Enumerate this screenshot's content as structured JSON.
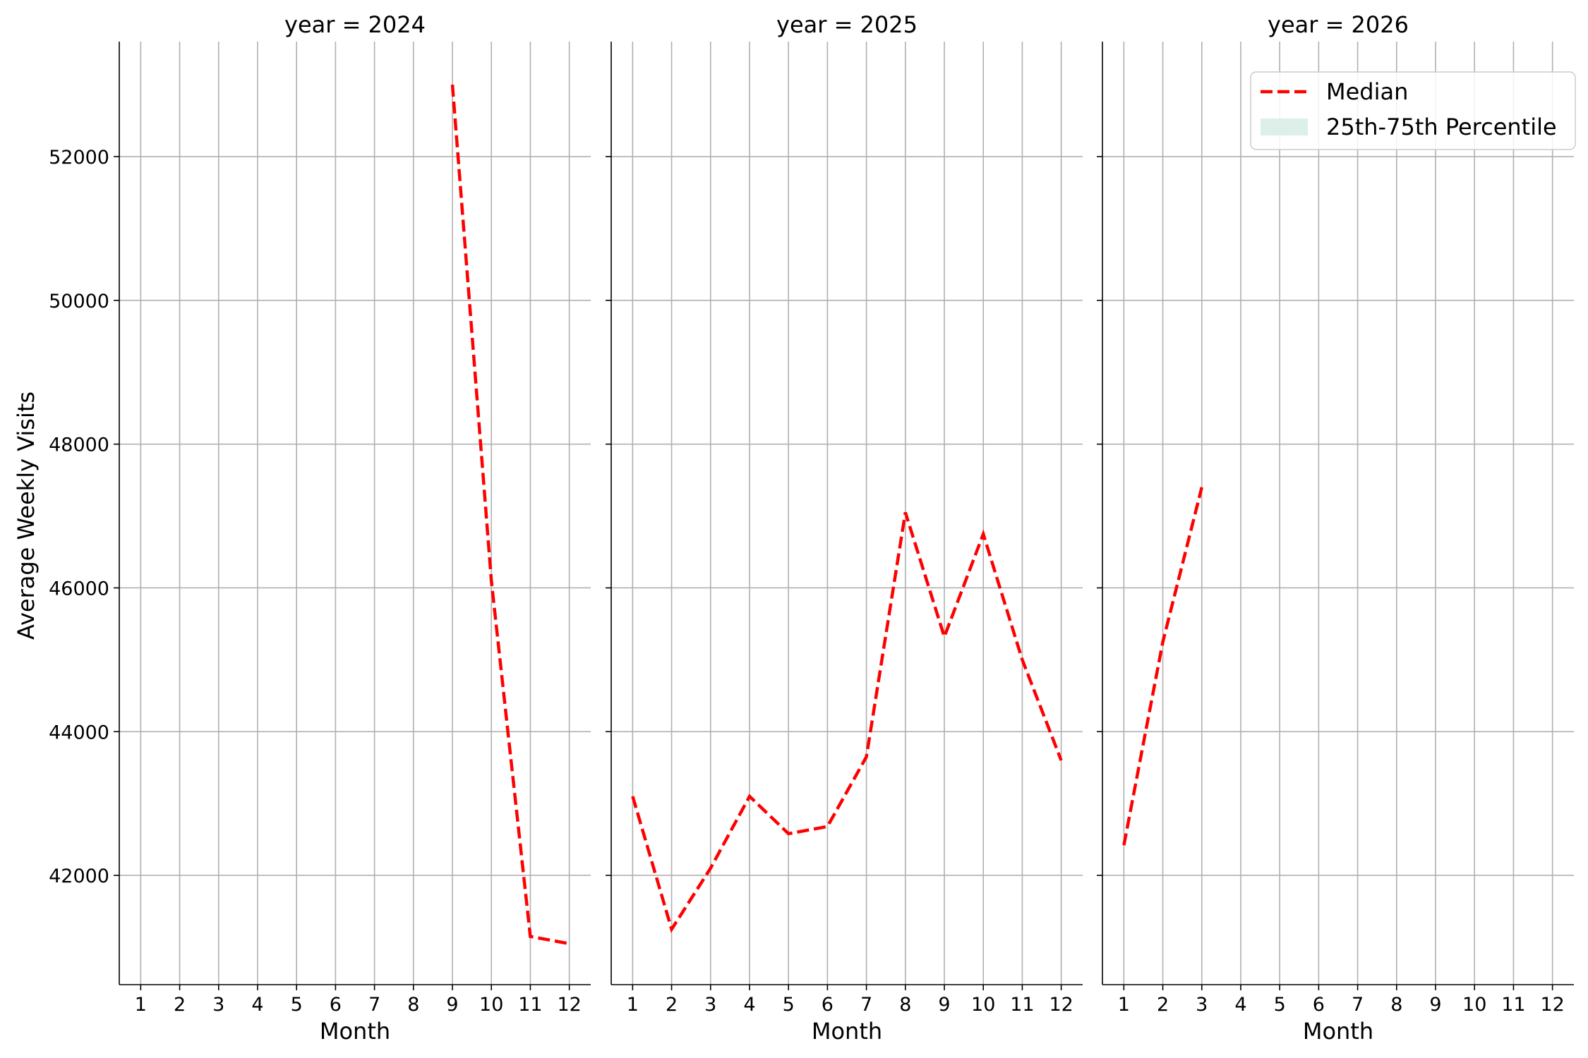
{
  "chart_data": {
    "type": "line",
    "ylabel": "Average Weekly Visits",
    "xlabel": "Month",
    "ylim": [
      40480,
      53600
    ],
    "yticks": [
      42000,
      44000,
      46000,
      48000,
      50000,
      52000
    ],
    "xticks": [
      1,
      2,
      3,
      4,
      5,
      6,
      7,
      8,
      9,
      10,
      11,
      12
    ],
    "xlim": [
      0.45,
      12.55
    ],
    "grid": true,
    "legend": {
      "placement": "top-right of last panel",
      "entries": [
        {
          "label": "Median",
          "style": "dashed-line",
          "color": "#ff0000"
        },
        {
          "label": "25th-75th Percentile",
          "style": "filled-band",
          "color": "#dcefe9"
        }
      ]
    },
    "panels": [
      {
        "title": "year = 2024",
        "series": [
          {
            "name": "Median",
            "x": [
              9,
              10,
              11,
              12
            ],
            "values": [
              53000,
              46100,
              41150,
              41050
            ]
          }
        ]
      },
      {
        "title": "year = 2025",
        "series": [
          {
            "name": "Median",
            "x": [
              1,
              2,
              3,
              4,
              5,
              6,
              7,
              8,
              9,
              10,
              11,
              12
            ],
            "values": [
              43100,
              41250,
              42100,
              43100,
              42580,
              42680,
              43650,
              47050,
              45320,
              46750,
              45000,
              43600
            ]
          }
        ]
      },
      {
        "title": "year = 2026",
        "series": [
          {
            "name": "Median",
            "x": [
              1,
              2,
              3
            ],
            "values": [
              42420,
              45250,
              47400
            ]
          }
        ]
      }
    ]
  },
  "colors": {
    "median_line": "#ff0000",
    "band_fill": "#dcefe9",
    "grid": "#b0b0b0",
    "axis": "#000000"
  }
}
